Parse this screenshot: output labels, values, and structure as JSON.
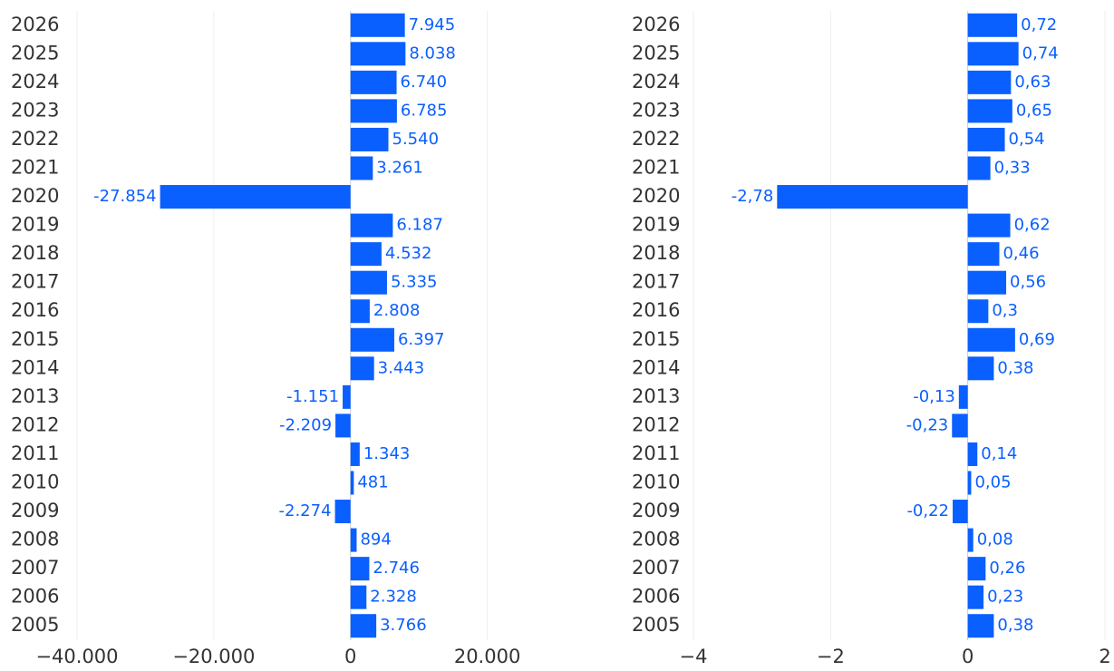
{
  "chart_data": [
    {
      "type": "bar",
      "orientation": "horizontal",
      "color": "#0a5fff",
      "grid": true,
      "categories": [
        "2026",
        "2025",
        "2024",
        "2023",
        "2022",
        "2021",
        "2020",
        "2019",
        "2018",
        "2017",
        "2016",
        "2015",
        "2014",
        "2013",
        "2012",
        "2011",
        "2010",
        "2009",
        "2008",
        "2007",
        "2006",
        "2005"
      ],
      "values": [
        7945,
        8038,
        6740,
        6785,
        5540,
        3261,
        -27854,
        6187,
        4532,
        5335,
        2808,
        6397,
        3443,
        -1151,
        -2209,
        1343,
        481,
        -2274,
        894,
        2746,
        2328,
        3766
      ],
      "value_labels": [
        "7.945",
        "8.038",
        "6.740",
        "6.785",
        "5.540",
        "3.261",
        "-27.854",
        "6.187",
        "4.532",
        "5.335",
        "2.808",
        "6.397",
        "3.443",
        "-1.151",
        "-2.209",
        "1.343",
        "481",
        "-2.274",
        "894",
        "2.746",
        "2.328",
        "3.766"
      ],
      "xlim": [
        -40000,
        30000
      ],
      "xticks": [
        {
          "value": -40000,
          "label": "−40.000"
        },
        {
          "value": -20000,
          "label": "−20.000"
        },
        0,
        {
          "value": 20000,
          "label": "20.000"
        }
      ]
    },
    {
      "type": "bar",
      "orientation": "horizontal",
      "color": "#0a5fff",
      "grid": true,
      "categories": [
        "2026",
        "2025",
        "2024",
        "2023",
        "2022",
        "2021",
        "2020",
        "2019",
        "2018",
        "2017",
        "2016",
        "2015",
        "2014",
        "2013",
        "2012",
        "2011",
        "2010",
        "2009",
        "2008",
        "2007",
        "2006",
        "2005"
      ],
      "values": [
        0.72,
        0.74,
        0.63,
        0.65,
        0.54,
        0.33,
        -2.78,
        0.62,
        0.46,
        0.56,
        0.3,
        0.69,
        0.38,
        -0.13,
        -0.23,
        0.14,
        0.05,
        -0.22,
        0.08,
        0.26,
        0.23,
        0.38
      ],
      "value_labels": [
        "0,72",
        "0,74",
        "0,63",
        "0,65",
        "0,54",
        "0,33",
        "-2,78",
        "0,62",
        "0,46",
        "0,56",
        "0,3",
        "0,69",
        "0,38",
        "-0,13",
        "-0,23",
        "0,14",
        "0,05",
        "-0,22",
        "0,08",
        "0,26",
        "0,23",
        "0,38"
      ],
      "xlim": [
        -4,
        2
      ],
      "xticks": [
        {
          "value": -4,
          "label": "−4"
        },
        {
          "value": -2,
          "label": "−2"
        },
        0,
        2
      ]
    }
  ]
}
